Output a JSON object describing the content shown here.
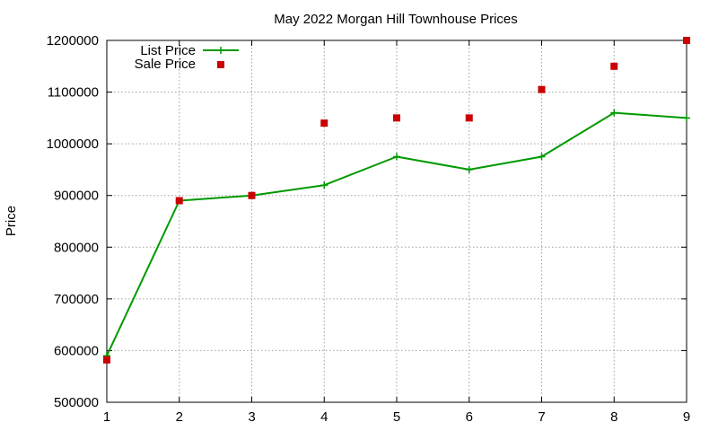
{
  "chart_data": {
    "type": "line",
    "title": "May 2022 Morgan Hill Townhouse Prices",
    "xlabel": "",
    "ylabel": "Price",
    "x": [
      1,
      2,
      3,
      4,
      5,
      6,
      7,
      8,
      9
    ],
    "xlim": [
      1,
      9
    ],
    "ylim": [
      500000,
      1200000
    ],
    "x_ticks": [
      "1",
      "2",
      "3",
      "4",
      "5",
      "6",
      "7",
      "8",
      "9"
    ],
    "y_ticks": [
      "500000",
      "600000",
      "700000",
      "800000",
      "900000",
      "1000000",
      "1100000",
      "1200000"
    ],
    "grid": true,
    "legend_position": "top-left",
    "series": [
      {
        "name": "List Price",
        "style": "line with plus markers",
        "color": "#009900",
        "values": [
          590000,
          890000,
          900000,
          920000,
          975000,
          950000,
          975000,
          1060000,
          1050000
        ]
      },
      {
        "name": "Sale Price",
        "style": "square markers",
        "color": "#cc0000",
        "values": [
          582000,
          890000,
          900000,
          1040000,
          1050000,
          1050000,
          1105000,
          1150000,
          1200000
        ]
      }
    ]
  }
}
